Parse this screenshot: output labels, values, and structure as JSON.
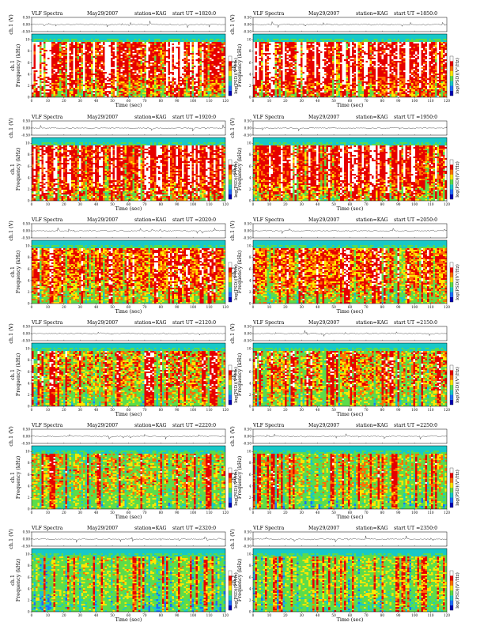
{
  "colors": {
    "spectrogram": [
      "#ffffff",
      "#e60000",
      "#ff7000",
      "#ffe600",
      "#5cdc4a",
      "#18c8c8",
      "#1e6eff",
      "#0000b4"
    ],
    "colorbar": [
      "#0000b4",
      "#1e6eff",
      "#18c8c8",
      "#5cdc4a",
      "#ffe600",
      "#ff7000",
      "#e60000",
      "#ffffff"
    ]
  },
  "chart_data": [
    {
      "type": "heatmap",
      "title": "VLF Spectra",
      "date": "May29/2007",
      "station": "station=KAG",
      "start": "start  UT  =1820:0",
      "xlabel": "Time  (sec)",
      "ylabel_top": "ch.1 (V)",
      "ylabel_main": "Frequency  (kHz)",
      "ylabel_main_prefix": "ch.1",
      "colorbar_label": "log(PSD)(V²/Hz)",
      "x_ticks": [
        "0",
        "10",
        "20",
        "30",
        "40",
        "50",
        "60",
        "70",
        "80",
        "90",
        "100",
        "110",
        "120"
      ],
      "y_ticks": [
        "0",
        "2",
        "4",
        "6",
        "8",
        "10"
      ],
      "top_ticks": [
        "-0.50",
        "0.00",
        "0.50"
      ],
      "xlim": [
        0,
        120
      ],
      "ylim": [
        0,
        11
      ],
      "top_ylim": [
        -0.5,
        0.5
      ],
      "intensity": 0.78
    },
    {
      "type": "heatmap",
      "title": "VLF Spectra",
      "date": "May29/2007",
      "station": "station=KAG",
      "start": "start  UT  =1850:0",
      "xlabel": "Time  (sec)",
      "ylabel_top": "ch.1 (V)",
      "ylabel_main": "Frequency  (kHz)",
      "ylabel_main_prefix": "ch.1",
      "colorbar_label": "log(PSD)(V²/Hz)",
      "x_ticks": [
        "0",
        "10",
        "20",
        "30",
        "40",
        "50",
        "60",
        "70",
        "80",
        "90",
        "100",
        "110",
        "120"
      ],
      "y_ticks": [
        "0",
        "2",
        "4",
        "6",
        "8",
        "10"
      ],
      "top_ticks": [
        "-0.50",
        "0.00",
        "0.50"
      ],
      "xlim": [
        0,
        120
      ],
      "ylim": [
        0,
        11
      ],
      "top_ylim": [
        -0.5,
        0.5
      ],
      "intensity": 0.8
    },
    {
      "type": "heatmap",
      "title": "VLF Spectra",
      "date": "May29/2007",
      "station": "station=KAG",
      "start": "start  UT  =1920:0",
      "xlabel": "Time  (sec)",
      "ylabel_top": "ch.1 (V)",
      "ylabel_main": "Frequency  (kHz)",
      "ylabel_main_prefix": "ch.1",
      "colorbar_label": "log(PSD)(V²/Hz)",
      "x_ticks": [
        "0",
        "10",
        "20",
        "30",
        "40",
        "50",
        "60",
        "70",
        "80",
        "90",
        "100",
        "110",
        "120"
      ],
      "y_ticks": [
        "0",
        "2",
        "4",
        "6",
        "8",
        "10"
      ],
      "top_ticks": [
        "-0.50",
        "0.00",
        "0.50"
      ],
      "xlim": [
        0,
        120
      ],
      "ylim": [
        0,
        11
      ],
      "top_ylim": [
        -0.5,
        0.5
      ],
      "intensity": 0.72
    },
    {
      "type": "heatmap",
      "title": "VLF Spectra",
      "date": "May29/2007",
      "station": "station=KAG",
      "start": "start  UT  =1950:0",
      "xlabel": "Time  (sec)",
      "ylabel_top": "ch.1 (V)",
      "ylabel_main": "Frequency  (kHz)",
      "ylabel_main_prefix": "ch.1",
      "colorbar_label": "log(PSD)(V²/Hz)",
      "x_ticks": [
        "0",
        "10",
        "20",
        "30",
        "40",
        "50",
        "60",
        "70",
        "80",
        "90",
        "100",
        "110",
        "120"
      ],
      "y_ticks": [
        "0",
        "2",
        "4",
        "6",
        "8",
        "10"
      ],
      "top_ticks": [
        "-0.50",
        "0.00",
        "0.50"
      ],
      "xlim": [
        0,
        120
      ],
      "ylim": [
        0,
        11
      ],
      "top_ylim": [
        -0.5,
        0.5
      ],
      "intensity": 0.74
    },
    {
      "type": "heatmap",
      "title": "VLF Spectra",
      "date": "May29/2007",
      "station": "station=KAG",
      "start": "start  UT  =2020:0",
      "xlabel": "Time  (sec)",
      "ylabel_top": "ch.1 (V)",
      "ylabel_main": "Frequency  (kHz)",
      "ylabel_main_prefix": "ch.1",
      "colorbar_label": "log(PSD)(V²/Hz)",
      "x_ticks": [
        "0",
        "10",
        "20",
        "30",
        "40",
        "50",
        "60",
        "70",
        "80",
        "90",
        "100",
        "110",
        "120"
      ],
      "y_ticks": [
        "0",
        "2",
        "4",
        "6",
        "8",
        "10"
      ],
      "top_ticks": [
        "-0.50",
        "0.00",
        "0.50"
      ],
      "xlim": [
        0,
        120
      ],
      "ylim": [
        0,
        11
      ],
      "top_ylim": [
        -0.5,
        0.5
      ],
      "intensity": 0.6
    },
    {
      "type": "heatmap",
      "title": "VLF Spectra",
      "date": "May29/2007",
      "station": "station=KAG",
      "start": "start  UT  =2050:0",
      "xlabel": "Time  (sec)",
      "ylabel_top": "ch.1 (V)",
      "ylabel_main": "Frequency  (kHz)",
      "ylabel_main_prefix": "ch.1",
      "colorbar_label": "log(PSD)(V²/Hz)",
      "x_ticks": [
        "0",
        "10",
        "20",
        "30",
        "40",
        "50",
        "60",
        "70",
        "80",
        "90",
        "100",
        "110",
        "120"
      ],
      "y_ticks": [
        "0",
        "2",
        "4",
        "6",
        "8",
        "10"
      ],
      "top_ticks": [
        "-0.50",
        "0.00",
        "0.50"
      ],
      "xlim": [
        0,
        120
      ],
      "ylim": [
        0,
        11
      ],
      "top_ylim": [
        -0.5,
        0.5
      ],
      "intensity": 0.6
    },
    {
      "type": "heatmap",
      "title": "VLF Spectra",
      "date": "May29/2007",
      "station": "station=KAG",
      "start": "start  UT  =2120:0",
      "xlabel": "Time  (sec)",
      "ylabel_top": "ch.1 (V)",
      "ylabel_main": "Frequency  (kHz)",
      "ylabel_main_prefix": "ch.1",
      "colorbar_label": "log(PSD)(V²/Hz)",
      "x_ticks": [
        "0",
        "10",
        "20",
        "30",
        "40",
        "50",
        "60",
        "70",
        "80",
        "90",
        "100",
        "110",
        "120"
      ],
      "y_ticks": [
        "0",
        "2",
        "4",
        "6",
        "8",
        "10"
      ],
      "top_ticks": [
        "-0.50",
        "0.00",
        "0.50"
      ],
      "xlim": [
        0,
        120
      ],
      "ylim": [
        0,
        11
      ],
      "top_ylim": [
        -0.5,
        0.5
      ],
      "intensity": 0.5
    },
    {
      "type": "heatmap",
      "title": "VLF Spectra",
      "date": "May29/2007",
      "station": "station=KAG",
      "start": "start  UT  =2150:0",
      "xlabel": "Time  (sec)",
      "ylabel_top": "ch.1 (V)",
      "ylabel_main": "Frequency  (kHz)",
      "ylabel_main_prefix": "ch.1",
      "colorbar_label": "log(PSD)(V²/Hz)",
      "x_ticks": [
        "0",
        "10",
        "20",
        "30",
        "40",
        "50",
        "60",
        "70",
        "80",
        "90",
        "100",
        "110",
        "120"
      ],
      "y_ticks": [
        "0",
        "2",
        "4",
        "6",
        "8",
        "10"
      ],
      "top_ticks": [
        "-0.50",
        "0.00",
        "0.50"
      ],
      "xlim": [
        0,
        120
      ],
      "ylim": [
        0,
        11
      ],
      "top_ylim": [
        -0.5,
        0.5
      ],
      "intensity": 0.5
    },
    {
      "type": "heatmap",
      "title": "VLF Spectra",
      "date": "May29/2007",
      "station": "station=KAG",
      "start": "start  UT  =2220:0",
      "xlabel": "Time  (sec)",
      "ylabel_top": "ch.1 (V)",
      "ylabel_main": "Frequency  (kHz)",
      "ylabel_main_prefix": "ch.1",
      "colorbar_label": "log(PSD)(V²/Hz)",
      "x_ticks": [
        "0",
        "10",
        "20",
        "30",
        "40",
        "50",
        "60",
        "70",
        "80",
        "90",
        "100",
        "110",
        "120"
      ],
      "y_ticks": [
        "0",
        "2",
        "4",
        "6",
        "8",
        "10"
      ],
      "top_ticks": [
        "-0.50",
        "0.00",
        "0.50"
      ],
      "xlim": [
        0,
        120
      ],
      "ylim": [
        0,
        11
      ],
      "top_ylim": [
        -0.5,
        0.5
      ],
      "intensity": 0.42
    },
    {
      "type": "heatmap",
      "title": "VLF Spectra",
      "date": "May29/2007",
      "station": "station=KAG",
      "start": "start  UT  =2250:0",
      "xlabel": "Time  (sec)",
      "ylabel_top": "ch.1 (V)",
      "ylabel_main": "Frequency  (kHz)",
      "ylabel_main_prefix": "ch.1",
      "colorbar_label": "log(PSD)(V²/Hz)",
      "x_ticks": [
        "0",
        "10",
        "20",
        "30",
        "40",
        "50",
        "60",
        "70",
        "80",
        "90",
        "100",
        "110",
        "120"
      ],
      "y_ticks": [
        "0",
        "2",
        "4",
        "6",
        "8",
        "10"
      ],
      "top_ticks": [
        "-0.50",
        "0.00",
        "0.50"
      ],
      "xlim": [
        0,
        120
      ],
      "ylim": [
        0,
        11
      ],
      "top_ylim": [
        -0.5,
        0.5
      ],
      "intensity": 0.4
    },
    {
      "type": "heatmap",
      "title": "VLF Spectra",
      "date": "May29/2007",
      "station": "station=KAG",
      "start": "start  UT  =2320:0",
      "xlabel": "Time  (sec)",
      "ylabel_top": "ch.1 (V)",
      "ylabel_main": "Frequency  (kHz)",
      "ylabel_main_prefix": "ch.1",
      "colorbar_label": "log(PSD)(V²/Hz)",
      "x_ticks": [
        "0",
        "10",
        "20",
        "30",
        "40",
        "50",
        "60",
        "70",
        "80",
        "90",
        "100",
        "110",
        "120"
      ],
      "y_ticks": [
        "0",
        "2",
        "4",
        "6",
        "8",
        "10"
      ],
      "top_ticks": [
        "-0.50",
        "0.00",
        "0.50"
      ],
      "xlim": [
        0,
        120
      ],
      "ylim": [
        0,
        11
      ],
      "top_ylim": [
        -0.5,
        0.5
      ],
      "intensity": 0.3
    },
    {
      "type": "heatmap",
      "title": "VLF Spectra",
      "date": "May29/2007",
      "station": "station=KAG",
      "start": "start  UT  =2350:0",
      "xlabel": "Time  (sec)",
      "ylabel_top": "ch.1 (V)",
      "ylabel_main": "Frequency  (kHz)",
      "ylabel_main_prefix": "ch.1",
      "colorbar_label": "log(PSD)(V²/Hz)",
      "x_ticks": [
        "0",
        "10",
        "20",
        "30",
        "40",
        "50",
        "60",
        "70",
        "80",
        "90",
        "100",
        "110",
        "120"
      ],
      "y_ticks": [
        "0",
        "2",
        "4",
        "6",
        "8",
        "10"
      ],
      "top_ticks": [
        "-0.50",
        "0.00",
        "0.50"
      ],
      "xlim": [
        0,
        120
      ],
      "ylim": [
        0,
        11
      ],
      "top_ylim": [
        -0.5,
        0.5
      ],
      "intensity": 0.28
    }
  ]
}
